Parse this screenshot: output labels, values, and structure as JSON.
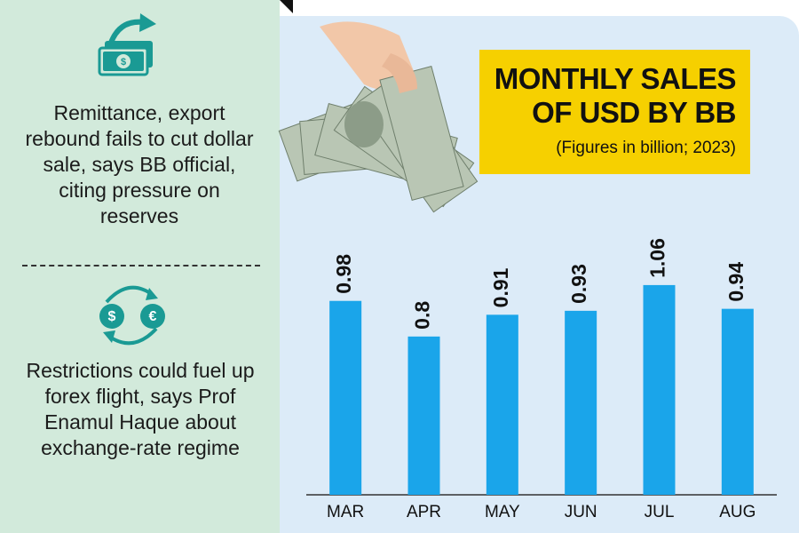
{
  "sidebar": {
    "items": [
      "Remittance, export rebound fails to cut dollar sale, says BB official, citing pressure on reserves",
      "Restrictions could fuel up forex flight, says Prof Enamul Haque about exchange-rate regime"
    ]
  },
  "chart_data": {
    "type": "bar",
    "title": "MONTHLY SALES OF USD BY BB",
    "subtitle": "(Figures in billion; 2023)",
    "categories": [
      "MAR",
      "APR",
      "MAY",
      "JUN",
      "JUL",
      "AUG"
    ],
    "values": [
      0.98,
      0.8,
      0.91,
      0.93,
      1.06,
      0.94
    ],
    "color": "#1aa5ea",
    "ylim": [
      0,
      1.1
    ],
    "grid": false
  }
}
